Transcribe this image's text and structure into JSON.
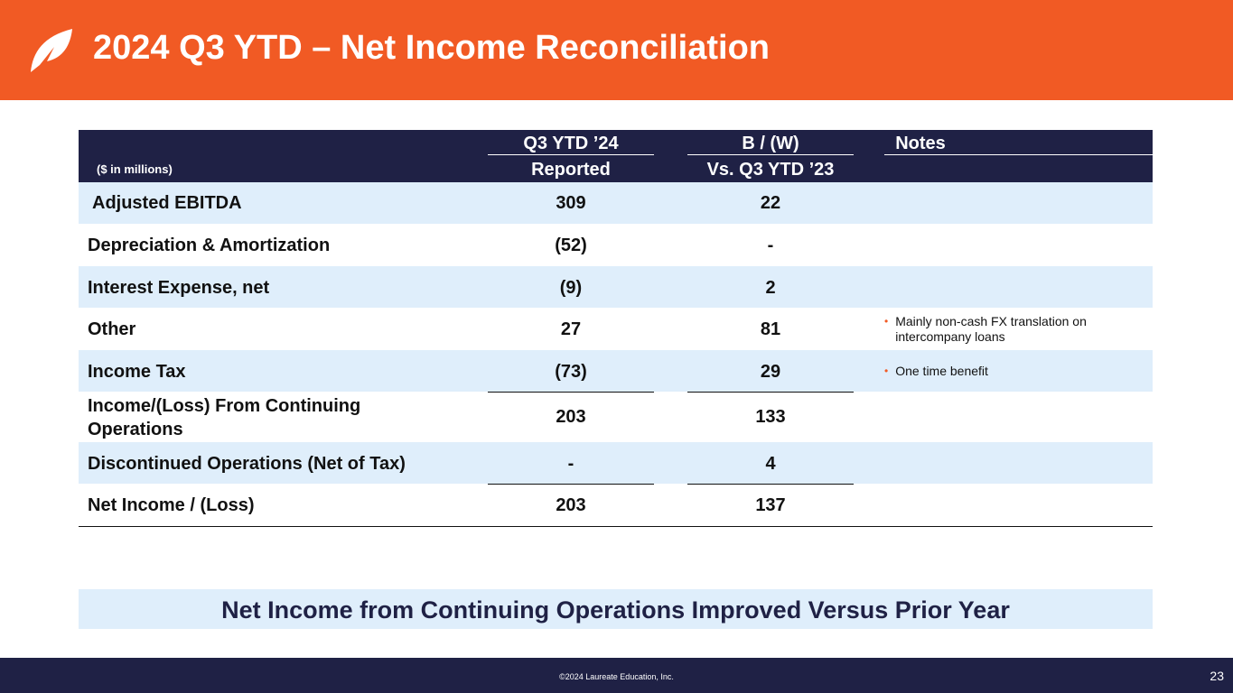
{
  "header": {
    "title": "2024 Q3 YTD – Net Income Reconciliation"
  },
  "table": {
    "units": "($ in millions)",
    "col1_top": "Q3 YTD ’24",
    "col1_bottom": "Reported",
    "col2_top": "B / (W)",
    "col2_bottom": "Vs. Q3 YTD ’23",
    "col3_top": "Notes",
    "rows": [
      {
        "label": "Adjusted EBITDA",
        "reported": "309",
        "bw": "22",
        "note": ""
      },
      {
        "label": "Depreciation & Amortization",
        "reported": "(52)",
        "bw": "-",
        "note": ""
      },
      {
        "label": "Interest Expense, net",
        "reported": "(9)",
        "bw": "2",
        "note": ""
      },
      {
        "label": "Other",
        "reported": "27",
        "bw": "81",
        "note": "Mainly non-cash FX translation on intercompany loans"
      },
      {
        "label": "Income Tax",
        "reported": "(73)",
        "bw": "29",
        "note": "One time benefit"
      },
      {
        "label": "Income/(Loss) From Continuing Operations",
        "reported": "203",
        "bw": "133",
        "note": ""
      },
      {
        "label": "Discontinued Operations (Net of Tax)",
        "reported": "-",
        "bw": "4",
        "note": ""
      },
      {
        "label": "Net Income / (Loss)",
        "reported": "203",
        "bw": "137",
        "note": ""
      }
    ]
  },
  "banner": {
    "text": "Net Income from Continuing Operations Improved Versus Prior Year"
  },
  "footer": {
    "copyright": "©2024 Laureate Education, Inc.",
    "page_number": "23"
  },
  "colors": {
    "brand_orange": "#f15a24",
    "navy": "#1f2145",
    "row_shade": "#dfeefb"
  }
}
